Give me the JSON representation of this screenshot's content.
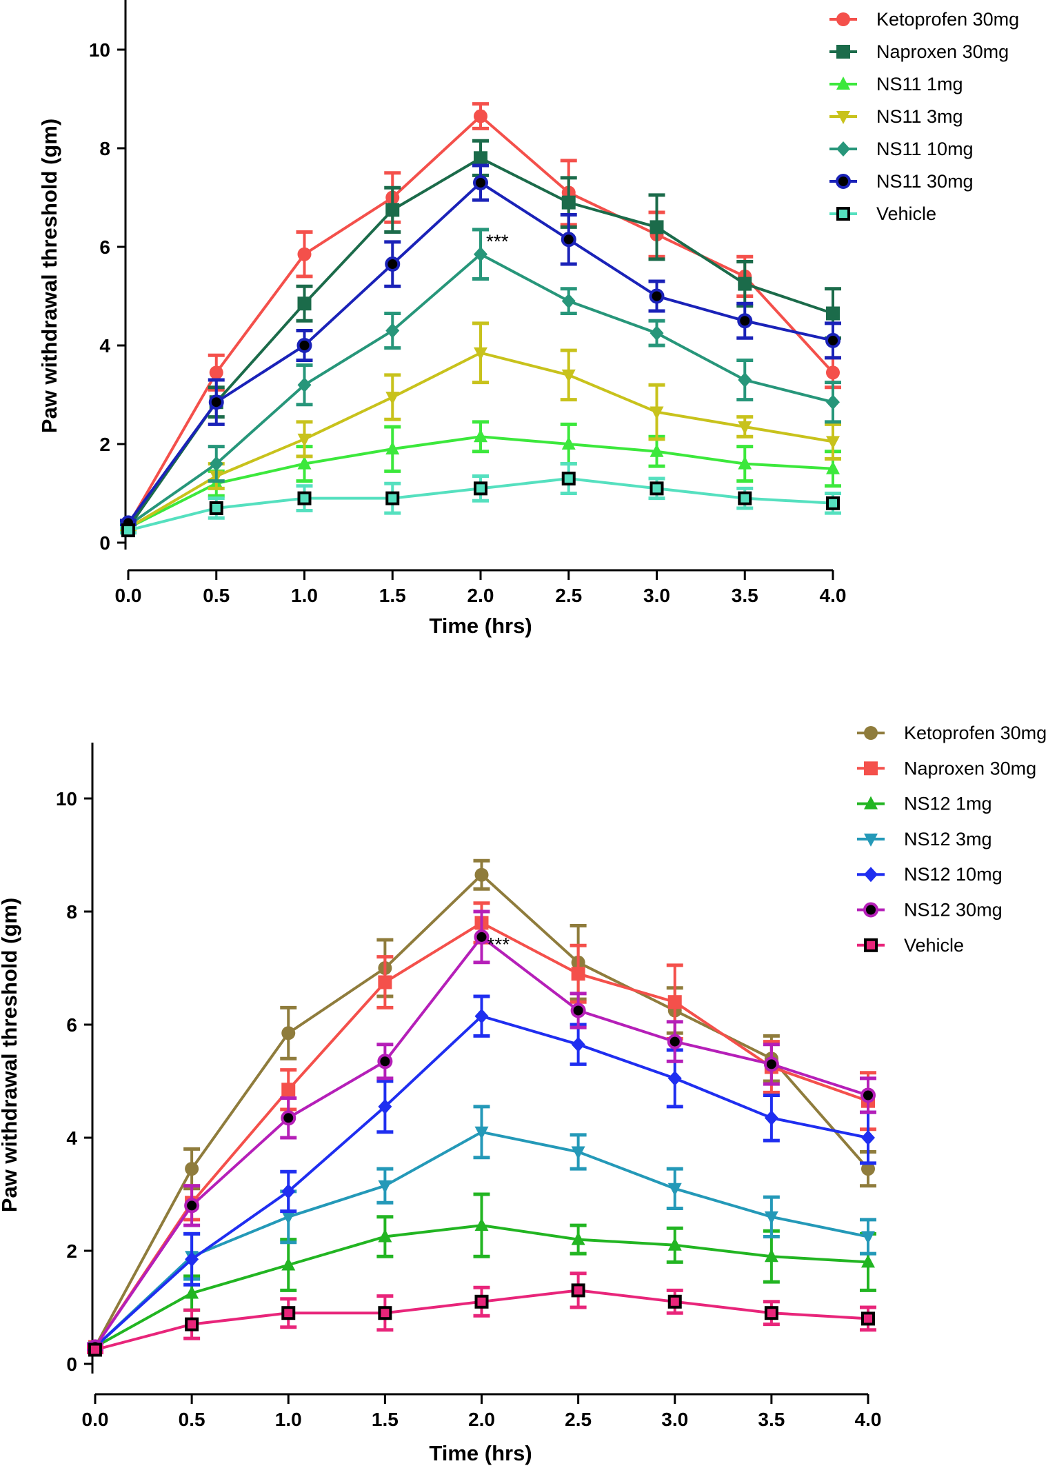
{
  "chart_data": [
    {
      "type": "line",
      "title": "",
      "xlabel": "Time (hrs)",
      "ylabel": "Paw withdrawal threshold (gm)",
      "x": [
        0.0,
        0.5,
        1.0,
        1.5,
        2.0,
        2.5,
        3.0,
        3.5,
        4.0
      ],
      "x_tick_labels": [
        "0.0",
        "0.5",
        "1.0",
        "1.5",
        "2.0",
        "2.5",
        "3.0",
        "3.5",
        "4.0"
      ],
      "y_ticks": [
        0,
        2,
        4,
        6,
        8,
        10
      ],
      "y_tick_labels": [
        "0",
        "2",
        "4",
        "6",
        "8",
        "10"
      ],
      "xlim": [
        0,
        4
      ],
      "ylim": [
        0,
        11
      ],
      "legend_position": "top-right",
      "annotation": {
        "text": "***",
        "x": 2.0,
        "y": 6.2
      },
      "series": [
        {
          "name": "Ketoprofen 30mg",
          "color": "#f4504b",
          "marker": "circle",
          "values": [
            0.35,
            3.45,
            5.85,
            7.0,
            8.65,
            7.1,
            6.25,
            5.4,
            3.45
          ],
          "errors": [
            0.05,
            0.35,
            0.45,
            0.5,
            0.25,
            0.65,
            0.45,
            0.4,
            0.3
          ]
        },
        {
          "name": "Naproxen 30mg",
          "color": "#1b6b4a",
          "marker": "square",
          "values": [
            0.3,
            2.85,
            4.85,
            6.75,
            7.8,
            6.9,
            6.4,
            5.25,
            4.65
          ],
          "errors": [
            0.05,
            0.3,
            0.35,
            0.45,
            0.35,
            0.5,
            0.65,
            0.45,
            0.5
          ]
        },
        {
          "name": "NS11 1mg",
          "color": "#3ce83c",
          "marker": "triangle-up",
          "values": [
            0.3,
            1.2,
            1.6,
            1.9,
            2.15,
            2.0,
            1.85,
            1.6,
            1.5
          ],
          "errors": [
            0.05,
            0.25,
            0.35,
            0.45,
            0.3,
            0.4,
            0.3,
            0.35,
            0.35
          ]
        },
        {
          "name": "NS11 3mg",
          "color": "#c8c21c",
          "marker": "triangle-down",
          "values": [
            0.3,
            1.35,
            2.1,
            2.95,
            3.85,
            3.4,
            2.65,
            2.35,
            2.05
          ],
          "errors": [
            0.05,
            0.25,
            0.35,
            0.45,
            0.6,
            0.5,
            0.55,
            0.2,
            0.35
          ]
        },
        {
          "name": "NS11 10mg",
          "color": "#27967a",
          "marker": "diamond",
          "values": [
            0.35,
            1.6,
            3.2,
            4.3,
            5.85,
            4.9,
            4.25,
            3.3,
            2.85
          ],
          "errors": [
            0.05,
            0.35,
            0.4,
            0.35,
            0.5,
            0.25,
            0.25,
            0.4,
            0.4
          ]
        },
        {
          "name": "NS11 30mg",
          "color": "#1a22b8",
          "marker": "circle-black",
          "values": [
            0.4,
            2.85,
            4.0,
            5.65,
            7.3,
            6.15,
            5.0,
            4.5,
            4.1
          ],
          "errors": [
            0.05,
            0.45,
            0.3,
            0.45,
            0.35,
            0.5,
            0.3,
            0.35,
            0.35
          ]
        },
        {
          "name": "Vehicle",
          "color": "#55e0bf",
          "marker": "square-open",
          "values": [
            0.25,
            0.7,
            0.9,
            0.9,
            1.1,
            1.3,
            1.1,
            0.9,
            0.8
          ],
          "errors": [
            0.05,
            0.2,
            0.25,
            0.3,
            0.25,
            0.3,
            0.2,
            0.2,
            0.2
          ]
        }
      ]
    },
    {
      "type": "line",
      "title": "",
      "xlabel": "Time (hrs)",
      "ylabel": "Paw withdrawal threshold (gm)",
      "x": [
        0.0,
        0.5,
        1.0,
        1.5,
        2.0,
        2.5,
        3.0,
        3.5,
        4.0
      ],
      "x_tick_labels": [
        "0.0",
        "0.5",
        "1.0",
        "1.5",
        "2.0",
        "2.5",
        "3.0",
        "3.5",
        "4.0"
      ],
      "y_ticks": [
        0,
        2,
        4,
        6,
        8,
        10
      ],
      "y_tick_labels": [
        "0",
        "2",
        "4",
        "6",
        "8",
        "10"
      ],
      "xlim": [
        0,
        4
      ],
      "ylim": [
        0,
        11
      ],
      "legend_position": "top-right",
      "annotation": {
        "text": "***",
        "x": 2.0,
        "y": 7.5
      },
      "series": [
        {
          "name": "Ketoprofen 30mg",
          "color": "#8f7c3c",
          "marker": "circle",
          "values": [
            0.3,
            3.45,
            5.85,
            7.0,
            8.65,
            7.1,
            6.25,
            5.4,
            3.45
          ],
          "errors": [
            0.05,
            0.35,
            0.45,
            0.5,
            0.25,
            0.65,
            0.4,
            0.4,
            0.3
          ]
        },
        {
          "name": "Naproxen 30mg",
          "color": "#f4504b",
          "marker": "square",
          "values": [
            0.3,
            2.85,
            4.85,
            6.75,
            7.8,
            6.9,
            6.4,
            5.25,
            4.65
          ],
          "errors": [
            0.05,
            0.3,
            0.35,
            0.45,
            0.35,
            0.5,
            0.65,
            0.45,
            0.5
          ]
        },
        {
          "name": "NS12 1mg",
          "color": "#22b522",
          "marker": "triangle-up",
          "values": [
            0.3,
            1.25,
            1.75,
            2.25,
            2.45,
            2.2,
            2.1,
            1.9,
            1.8
          ],
          "errors": [
            0.05,
            0.3,
            0.45,
            0.35,
            0.55,
            0.25,
            0.3,
            0.45,
            0.5
          ]
        },
        {
          "name": "NS12 3mg",
          "color": "#2499b8",
          "marker": "triangle-down",
          "values": [
            0.3,
            1.9,
            2.6,
            3.15,
            4.1,
            3.75,
            3.1,
            2.6,
            2.25
          ],
          "errors": [
            0.05,
            0.4,
            0.45,
            0.3,
            0.45,
            0.3,
            0.35,
            0.35,
            0.3
          ]
        },
        {
          "name": "NS12 10mg",
          "color": "#1f2ef0",
          "marker": "diamond",
          "values": [
            0.3,
            1.85,
            3.05,
            4.55,
            6.15,
            5.65,
            5.05,
            4.35,
            4.0
          ],
          "errors": [
            0.05,
            0.45,
            0.35,
            0.45,
            0.35,
            0.35,
            0.5,
            0.4,
            0.45
          ]
        },
        {
          "name": "NS12 30mg",
          "color": "#b51fb8",
          "marker": "circle-black",
          "values": [
            0.3,
            2.8,
            4.35,
            5.35,
            7.55,
            6.25,
            5.7,
            5.3,
            4.75
          ],
          "errors": [
            0.05,
            0.35,
            0.35,
            0.3,
            0.45,
            0.3,
            0.35,
            0.35,
            0.3
          ]
        },
        {
          "name": "Vehicle",
          "color": "#e8257a",
          "marker": "square-black",
          "values": [
            0.25,
            0.7,
            0.9,
            0.9,
            1.1,
            1.3,
            1.1,
            0.9,
            0.8
          ],
          "errors": [
            0.05,
            0.25,
            0.25,
            0.3,
            0.25,
            0.3,
            0.2,
            0.2,
            0.2
          ]
        }
      ]
    }
  ]
}
